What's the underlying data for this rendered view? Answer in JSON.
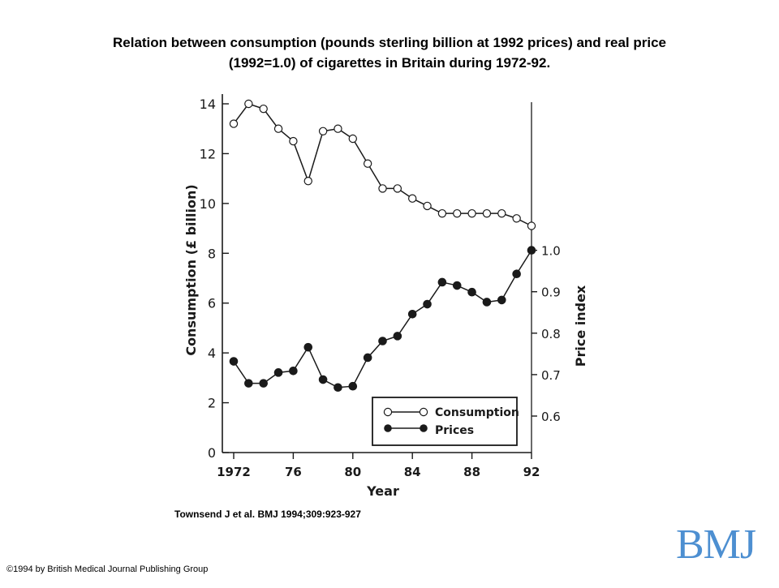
{
  "slide": {
    "title_line1": "Relation between consumption (pounds sterling billion at 1992 prices) and real price",
    "title_line2": "(1992=1.0) of cigarettes in Britain during 1972-92.",
    "citation": "Townsend J et al. BMJ 1994;309:923-927",
    "copyright": "©1994 by British Medical Journal Publishing Group",
    "logo_text": "BMJ",
    "logo_color": "#4d8fd1"
  },
  "chart_data": {
    "type": "line",
    "title": "Relation between consumption (pounds sterling billion at 1992 prices) and real price (1992=1.0) of cigarettes in Britain during 1972-92.",
    "xlabel": "Year",
    "ylabel_left": "Consumption (£ billion)",
    "ylabel_right": "Price index",
    "xlim": [
      1972,
      1992
    ],
    "ylim_left": [
      0,
      14
    ],
    "ylim_right": [
      0.5,
      1.0
    ],
    "x_ticks": [
      1972,
      1976,
      1980,
      1984,
      1988,
      1992
    ],
    "x_tick_labels": [
      "1972",
      "76",
      "80",
      "84",
      "88",
      "92"
    ],
    "y_left_ticks": [
      0,
      2,
      4,
      6,
      8,
      10,
      12,
      14
    ],
    "y_left_tick_labels": [
      "0",
      "2",
      "4",
      "6",
      "8",
      "10",
      "12",
      "14"
    ],
    "y_right_ticks": [
      0.6,
      0.7,
      0.8,
      0.9,
      1.0
    ],
    "y_right_tick_labels": [
      "0.6",
      "0.7",
      "0.8",
      "0.9",
      "1.0"
    ],
    "x": [
      1972,
      1973,
      1974,
      1975,
      1976,
      1977,
      1978,
      1979,
      1980,
      1981,
      1982,
      1983,
      1984,
      1985,
      1986,
      1987,
      1988,
      1989,
      1990,
      1991,
      1992
    ],
    "series": [
      {
        "name": "Consumption",
        "axis": "left",
        "marker": "open-circle",
        "values": [
          13.2,
          14.0,
          13.8,
          13.0,
          12.5,
          10.9,
          12.9,
          13.0,
          12.6,
          11.6,
          10.6,
          10.6,
          10.2,
          9.9,
          9.6,
          9.6,
          9.6,
          9.6,
          9.6,
          9.4,
          9.1
        ]
      },
      {
        "name": "Prices",
        "axis": "right",
        "marker": "filled-circle",
        "values": [
          0.732,
          0.679,
          0.679,
          0.705,
          0.709,
          0.766,
          0.688,
          0.669,
          0.672,
          0.741,
          0.781,
          0.793,
          0.846,
          0.87,
          0.923,
          0.915,
          0.899,
          0.875,
          0.88,
          0.943,
          1.0
        ]
      }
    ],
    "legend": {
      "position": "bottom-right",
      "entries": [
        "Consumption",
        "Prices"
      ]
    },
    "grid": false
  }
}
